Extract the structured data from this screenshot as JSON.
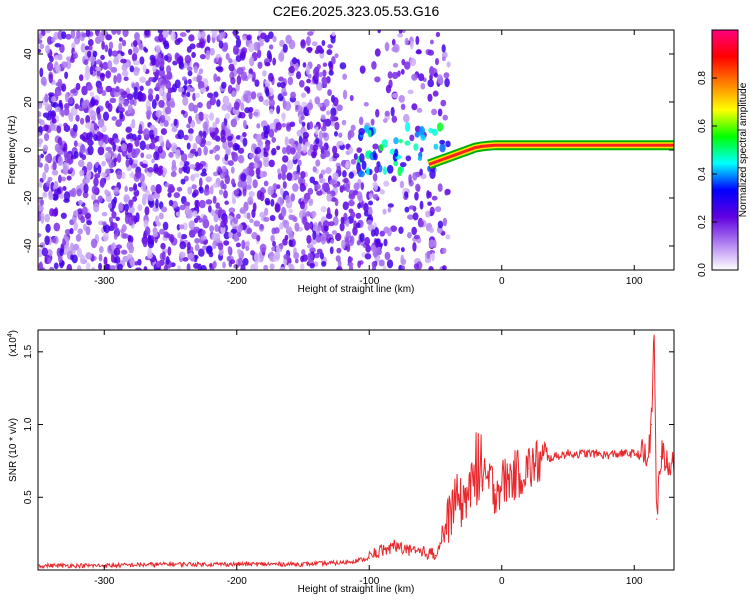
{
  "figure": {
    "title": "C2E6.2025.323.05.53.G16"
  },
  "chart_data": [
    {
      "type": "heatmap",
      "xlabel": "Height of straight line (km)",
      "ylabel": "Frequency (Hz)",
      "xlim": [
        -350,
        130
      ],
      "ylim": [
        -50,
        50
      ],
      "xticks": [
        -300,
        -200,
        -100,
        0,
        100
      ],
      "yticks": [
        -40,
        -20,
        0,
        20,
        40
      ],
      "ridge": {
        "x": [
          -55,
          -50,
          -45,
          -40,
          -35,
          -30,
          -25,
          -20,
          -15,
          -10,
          -5,
          0,
          10,
          20,
          40,
          60,
          80,
          100,
          115,
          130
        ],
        "y": [
          -6,
          -5,
          -4,
          -3,
          -2,
          -1,
          0,
          1,
          1.5,
          1.8,
          2,
          2,
          2,
          2,
          2,
          2,
          2,
          2,
          2,
          2
        ]
      },
      "noise_floor_x": [
        -350,
        -55
      ],
      "colorbar": {
        "label": "Normalized spectral amplitude",
        "range": [
          0,
          1
        ],
        "ticks": [
          "0.0",
          "0.2",
          "0.4",
          "0.6",
          "0.8"
        ],
        "colors": [
          "#ffffff",
          "#b080f0",
          "#6000e0",
          "#0000ff",
          "#00ffff",
          "#00ff00",
          "#ffff00",
          "#ff8000",
          "#ff0000",
          "#ff0080"
        ]
      }
    },
    {
      "type": "line",
      "xlabel": "Height of straight line (km)",
      "ylabel": "SNR (10 * v/v)",
      "multiplier_label": "(x10",
      "multiplier_exp": "4",
      "multiplier_close": ")",
      "xlim": [
        -350,
        130
      ],
      "ylim": [
        0,
        1.65
      ],
      "xticks": [
        -300,
        -200,
        -100,
        0,
        100
      ],
      "yticks": [
        "0.5",
        "1.0",
        "1.5"
      ],
      "ytick_values": [
        0.5,
        1.0,
        1.5
      ],
      "series": [
        {
          "color": "#e8282c",
          "x": [
            -350,
            -300,
            -250,
            -200,
            -150,
            -120,
            -100,
            -90,
            -80,
            -70,
            -60,
            -50,
            -45,
            -40,
            -35,
            -30,
            -25,
            -20,
            -15,
            -10,
            -5,
            0,
            10,
            20,
            30,
            40,
            50,
            60,
            70,
            80,
            90,
            100,
            105,
            110,
            113,
            115,
            117,
            120,
            125,
            130
          ],
          "y": [
            0.03,
            0.03,
            0.04,
            0.04,
            0.04,
            0.05,
            0.08,
            0.12,
            0.15,
            0.12,
            0.1,
            0.1,
            0.2,
            0.35,
            0.5,
            0.45,
            0.55,
            0.6,
            0.58,
            0.62,
            0.55,
            0.6,
            0.65,
            0.7,
            0.75,
            0.78,
            0.8,
            0.8,
            0.8,
            0.79,
            0.8,
            0.8,
            0.79,
            0.75,
            1.0,
            1.65,
            0.35,
            0.78,
            0.76,
            0.75
          ]
        }
      ]
    }
  ]
}
